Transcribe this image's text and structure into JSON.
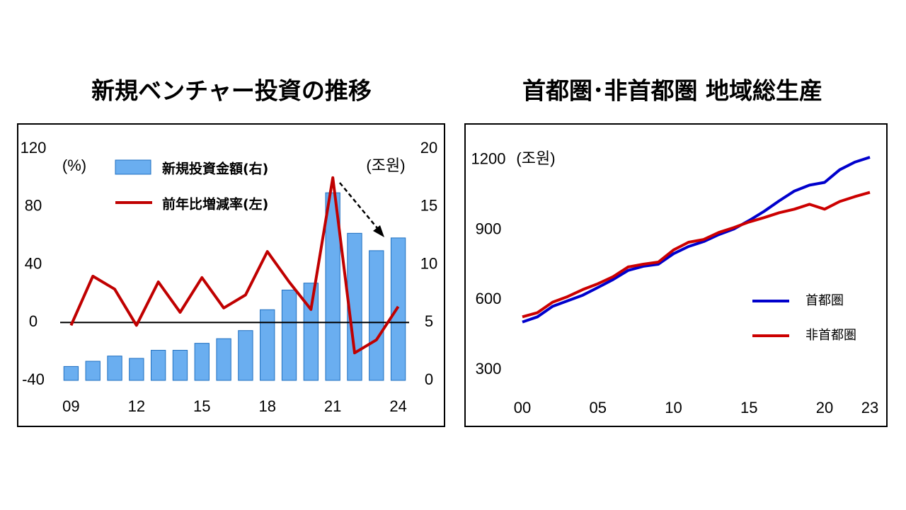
{
  "chart_data": [
    {
      "type": "combo",
      "title": "新規ベンチャー投資の推移",
      "y_unit_label": "(%)",
      "y2_unit_label": "(조원)",
      "categories": [
        "09",
        null,
        null,
        "12",
        null,
        null,
        "15",
        null,
        null,
        "18",
        null,
        null,
        "21",
        null,
        null,
        "24"
      ],
      "series": [
        {
          "name": "新規投資金額(右)",
          "type": "bar",
          "axis": "y2",
          "color": "#6aaef0",
          "values": [
            1.2,
            1.65,
            2.1,
            1.9,
            2.6,
            2.6,
            3.2,
            3.6,
            4.3,
            6.1,
            7.8,
            8.4,
            16.2,
            12.7,
            11.2,
            12.3
          ]
        },
        {
          "name": "前年比増減率(左)",
          "type": "line",
          "axis": "y",
          "color": "#c00000",
          "values": [
            -2,
            32,
            23,
            -2,
            28,
            7,
            31,
            10,
            19,
            49,
            28,
            9,
            100,
            -21,
            -12,
            11
          ]
        }
      ],
      "ylim": [
        -40,
        120
      ],
      "yticks": [
        -40,
        0,
        40,
        80,
        120
      ],
      "y2lim": [
        0,
        20
      ],
      "y2ticks": [
        0,
        5,
        10,
        15,
        20
      ],
      "zero_line": true
    },
    {
      "type": "line",
      "title": "首都圏･非首都圏 地域総生産",
      "y_unit_label": "(조원)",
      "categories": [
        "00",
        null,
        null,
        null,
        null,
        "05",
        null,
        null,
        null,
        null,
        "10",
        null,
        null,
        null,
        null,
        "15",
        null,
        null,
        null,
        null,
        "20",
        null,
        null,
        "23"
      ],
      "series": [
        {
          "name": "首都圏",
          "color": "#0000cc",
          "values": [
            505,
            527,
            572,
            596,
            620,
            653,
            687,
            726,
            744,
            753,
            798,
            829,
            850,
            880,
            904,
            940,
            980,
            1025,
            1067,
            1092,
            1104,
            1158,
            1191,
            1212
          ]
        },
        {
          "name": "非首都圏",
          "color": "#cc0000",
          "values": [
            527,
            545,
            590,
            614,
            644,
            669,
            699,
            741,
            753,
            762,
            814,
            847,
            859,
            889,
            910,
            934,
            953,
            974,
            989,
            1010,
            989,
            1022,
            1043,
            1061
          ]
        }
      ],
      "ylim": [
        300,
        1300
      ],
      "yticks": [
        300,
        600,
        900,
        1200
      ]
    }
  ]
}
